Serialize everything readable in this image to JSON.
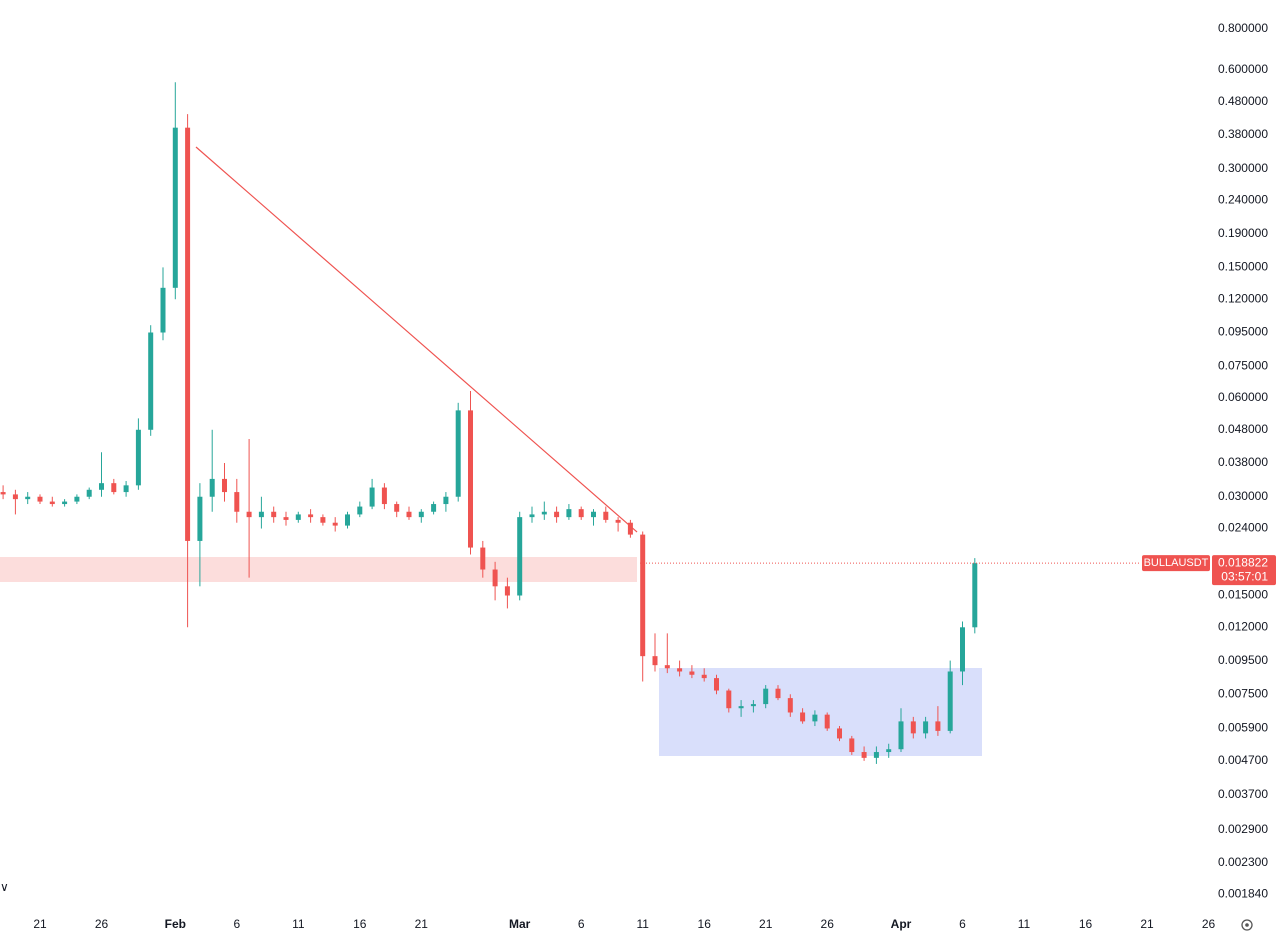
{
  "chart_data": {
    "type": "candlestick",
    "symbol": "BULLAUSDT",
    "countdown": "03:57:01",
    "last_price": 0.018822,
    "log_scale": true,
    "up_color": "#26a69a",
    "down_color": "#ef5350",
    "ylim": [
      0.00165,
      0.98
    ],
    "yticks": [
      {
        "value": 0.8,
        "label": "0.800000"
      },
      {
        "value": 0.6,
        "label": "0.600000"
      },
      {
        "value": 0.48,
        "label": "0.480000"
      },
      {
        "value": 0.38,
        "label": "0.380000"
      },
      {
        "value": 0.3,
        "label": "0.300000"
      },
      {
        "value": 0.24,
        "label": "0.240000"
      },
      {
        "value": 0.19,
        "label": "0.190000"
      },
      {
        "value": 0.15,
        "label": "0.150000"
      },
      {
        "value": 0.12,
        "label": "0.120000"
      },
      {
        "value": 0.095,
        "label": "0.095000"
      },
      {
        "value": 0.075,
        "label": "0.075000"
      },
      {
        "value": 0.06,
        "label": "0.060000"
      },
      {
        "value": 0.048,
        "label": "0.048000"
      },
      {
        "value": 0.038,
        "label": "0.038000"
      },
      {
        "value": 0.03,
        "label": "0.030000"
      },
      {
        "value": 0.024,
        "label": "0.024000"
      },
      {
        "value": 0.015,
        "label": "0.015000"
      },
      {
        "value": 0.012,
        "label": "0.012000"
      },
      {
        "value": 0.0095,
        "label": "0.009500"
      },
      {
        "value": 0.0075,
        "label": "0.007500"
      },
      {
        "value": 0.0059,
        "label": "0.005900"
      },
      {
        "value": 0.0047,
        "label": "0.004700"
      },
      {
        "value": 0.0037,
        "label": "0.003700"
      },
      {
        "value": 0.0029,
        "label": "0.002900"
      },
      {
        "value": 0.0023,
        "label": "0.002300"
      },
      {
        "value": 0.00184,
        "label": "0.001840"
      }
    ],
    "xticks": [
      {
        "value": "Jan 21",
        "label": "21"
      },
      {
        "value": "Jan 26",
        "label": "26"
      },
      {
        "value": "Feb 1",
        "label": "Feb"
      },
      {
        "value": "Feb 6",
        "label": "6"
      },
      {
        "value": "Feb 11",
        "label": "11"
      },
      {
        "value": "Feb 16",
        "label": "16"
      },
      {
        "value": "Feb 21",
        "label": "21"
      },
      {
        "value": "Mar 1",
        "label": "Mar"
      },
      {
        "value": "Mar 6",
        "label": "6"
      },
      {
        "value": "Mar 11",
        "label": "11"
      },
      {
        "value": "Mar 16",
        "label": "16"
      },
      {
        "value": "Mar 21",
        "label": "21"
      },
      {
        "value": "Mar 26",
        "label": "26"
      },
      {
        "value": "Apr 1",
        "label": "Apr"
      },
      {
        "value": "Apr 6",
        "label": "6"
      },
      {
        "value": "Apr 11",
        "label": "11"
      },
      {
        "value": "Apr 16",
        "label": "16"
      },
      {
        "value": "Apr 21",
        "label": "21"
      },
      {
        "value": "Apr 26",
        "label": "26"
      }
    ],
    "x": [
      "Jan 18",
      "Jan 19",
      "Jan 20",
      "Jan 21",
      "Jan 22",
      "Jan 23",
      "Jan 24",
      "Jan 25",
      "Jan 26",
      "Jan 27",
      "Jan 28",
      "Jan 29",
      "Jan 30",
      "Jan 31",
      "Feb 1",
      "Feb 2",
      "Feb 3",
      "Feb 4",
      "Feb 5",
      "Feb 6",
      "Feb 7",
      "Feb 8",
      "Feb 9",
      "Feb 10",
      "Feb 11",
      "Feb 12",
      "Feb 13",
      "Feb 14",
      "Feb 15",
      "Feb 16",
      "Feb 17",
      "Feb 18",
      "Feb 19",
      "Feb 20",
      "Feb 21",
      "Feb 22",
      "Feb 23",
      "Feb 24",
      "Feb 25",
      "Feb 26",
      "Feb 27",
      "Feb 28",
      "Mar 1",
      "Mar 2",
      "Mar 3",
      "Mar 4",
      "Mar 5",
      "Mar 6",
      "Mar 7",
      "Mar 8",
      "Mar 9",
      "Mar 10",
      "Mar 11",
      "Mar 12",
      "Mar 13",
      "Mar 14",
      "Mar 15",
      "Mar 16",
      "Mar 17",
      "Mar 18",
      "Mar 19",
      "Mar 20",
      "Mar 21",
      "Mar 22",
      "Mar 23",
      "Mar 24",
      "Mar 25",
      "Mar 26",
      "Mar 27",
      "Mar 28",
      "Mar 29",
      "Mar 30",
      "Mar 31",
      "Apr 1",
      "Apr 2",
      "Apr 3",
      "Apr 4",
      "Apr 5",
      "Apr 6",
      "Apr 7"
    ],
    "open": [
      0.031,
      0.0305,
      0.0295,
      0.03,
      0.029,
      0.0285,
      0.029,
      0.03,
      0.0315,
      0.033,
      0.031,
      0.0325,
      0.048,
      0.095,
      0.13,
      0.4,
      0.022,
      0.03,
      0.034,
      0.031,
      0.027,
      0.026,
      0.027,
      0.026,
      0.0255,
      0.0265,
      0.026,
      0.025,
      0.0245,
      0.0265,
      0.028,
      0.032,
      0.0285,
      0.027,
      0.026,
      0.027,
      0.0285,
      0.03,
      0.055,
      0.021,
      0.018,
      0.016,
      0.015,
      0.026,
      0.0265,
      0.027,
      0.026,
      0.0275,
      0.026,
      0.027,
      0.0255,
      0.025,
      0.023,
      0.0098,
      0.0092,
      0.009,
      0.0088,
      0.0086,
      0.0084,
      0.0077,
      0.0068,
      0.0069,
      0.007,
      0.0078,
      0.0073,
      0.0066,
      0.0062,
      0.0065,
      0.0059,
      0.0055,
      0.005,
      0.0048,
      0.005,
      0.0051,
      0.0062,
      0.0057,
      0.0062,
      0.0058,
      0.0088,
      0.012
    ],
    "high": [
      0.0325,
      0.0315,
      0.031,
      0.0305,
      0.03,
      0.0295,
      0.0305,
      0.032,
      0.041,
      0.034,
      0.0335,
      0.052,
      0.1,
      0.15,
      0.55,
      0.44,
      0.033,
      0.048,
      0.038,
      0.034,
      0.045,
      0.03,
      0.028,
      0.027,
      0.027,
      0.0275,
      0.0265,
      0.026,
      0.027,
      0.029,
      0.034,
      0.033,
      0.029,
      0.028,
      0.0275,
      0.029,
      0.031,
      0.058,
      0.063,
      0.022,
      0.019,
      0.017,
      0.027,
      0.028,
      0.029,
      0.028,
      0.0285,
      0.028,
      0.0275,
      0.028,
      0.026,
      0.0255,
      0.0235,
      0.0115,
      0.0115,
      0.0095,
      0.0092,
      0.009,
      0.0086,
      0.0078,
      0.0072,
      0.0072,
      0.008,
      0.008,
      0.0075,
      0.0068,
      0.0067,
      0.0066,
      0.006,
      0.0056,
      0.0052,
      0.0052,
      0.0053,
      0.0068,
      0.0064,
      0.0064,
      0.0069,
      0.0095,
      0.0125,
      0.0195
    ],
    "low": [
      0.0295,
      0.0265,
      0.0285,
      0.0285,
      0.028,
      0.028,
      0.0285,
      0.0295,
      0.03,
      0.0305,
      0.03,
      0.0315,
      0.046,
      0.09,
      0.12,
      0.012,
      0.016,
      0.027,
      0.029,
      0.025,
      0.017,
      0.024,
      0.025,
      0.0245,
      0.025,
      0.025,
      0.0245,
      0.0235,
      0.024,
      0.026,
      0.0275,
      0.0275,
      0.026,
      0.0255,
      0.025,
      0.0265,
      0.027,
      0.029,
      0.02,
      0.017,
      0.0145,
      0.0137,
      0.0145,
      0.025,
      0.0255,
      0.025,
      0.0255,
      0.0255,
      0.0245,
      0.025,
      0.0235,
      0.0225,
      0.0082,
      0.0088,
      0.0087,
      0.0085,
      0.0084,
      0.0082,
      0.0075,
      0.0066,
      0.0064,
      0.0066,
      0.0068,
      0.0072,
      0.0064,
      0.0061,
      0.006,
      0.0058,
      0.0054,
      0.0049,
      0.0047,
      0.0046,
      0.0048,
      0.005,
      0.0055,
      0.0055,
      0.0056,
      0.0057,
      0.008,
      0.0115
    ],
    "close": [
      0.0305,
      0.0295,
      0.03,
      0.029,
      0.0285,
      0.029,
      0.03,
      0.0315,
      0.033,
      0.031,
      0.0325,
      0.048,
      0.095,
      0.13,
      0.4,
      0.022,
      0.03,
      0.034,
      0.031,
      0.027,
      0.026,
      0.027,
      0.026,
      0.0255,
      0.0265,
      0.026,
      0.025,
      0.0245,
      0.0265,
      0.028,
      0.032,
      0.0285,
      0.027,
      0.026,
      0.027,
      0.0285,
      0.03,
      0.055,
      0.021,
      0.018,
      0.016,
      0.015,
      0.026,
      0.0265,
      0.027,
      0.026,
      0.0275,
      0.026,
      0.027,
      0.0255,
      0.025,
      0.023,
      0.0098,
      0.0092,
      0.009,
      0.0088,
      0.0086,
      0.0084,
      0.0077,
      0.0068,
      0.0069,
      0.007,
      0.0078,
      0.0073,
      0.0066,
      0.0062,
      0.0065,
      0.0059,
      0.0055,
      0.005,
      0.0048,
      0.005,
      0.0051,
      0.0062,
      0.0057,
      0.0062,
      0.0058,
      0.0088,
      0.012,
      0.018822
    ]
  }
}
